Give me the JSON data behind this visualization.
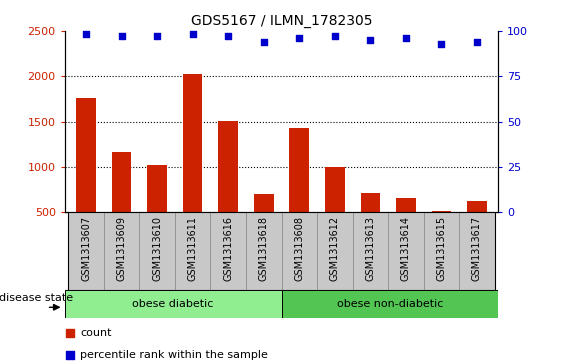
{
  "title": "GDS5167 / ILMN_1782305",
  "samples": [
    "GSM1313607",
    "GSM1313609",
    "GSM1313610",
    "GSM1313611",
    "GSM1313616",
    "GSM1313618",
    "GSM1313608",
    "GSM1313612",
    "GSM1313613",
    "GSM1313614",
    "GSM1313615",
    "GSM1313617"
  ],
  "counts": [
    1760,
    1165,
    1020,
    2025,
    1510,
    700,
    1430,
    1005,
    715,
    660,
    520,
    620
  ],
  "percentiles": [
    98,
    97,
    97,
    98,
    97,
    94,
    96,
    97,
    95,
    96,
    93,
    94
  ],
  "groups": [
    {
      "label": "obese diabetic",
      "start": 0,
      "end": 6,
      "color": "#90EE90"
    },
    {
      "label": "obese non-diabetic",
      "start": 6,
      "end": 12,
      "color": "#52C552"
    }
  ],
  "ylim_left": [
    500,
    2500
  ],
  "ylim_right": [
    0,
    100
  ],
  "yticks_left": [
    500,
    1000,
    1500,
    2000,
    2500
  ],
  "yticks_right": [
    0,
    25,
    50,
    75,
    100
  ],
  "bar_color": "#CC2200",
  "dot_color": "#0000CC",
  "tick_bg_color": "#C8C8C8",
  "disease_state_label": "disease state",
  "legend_count_label": "count",
  "legend_percentile_label": "percentile rank within the sample",
  "grid_yticks": [
    1000,
    1500,
    2000
  ]
}
